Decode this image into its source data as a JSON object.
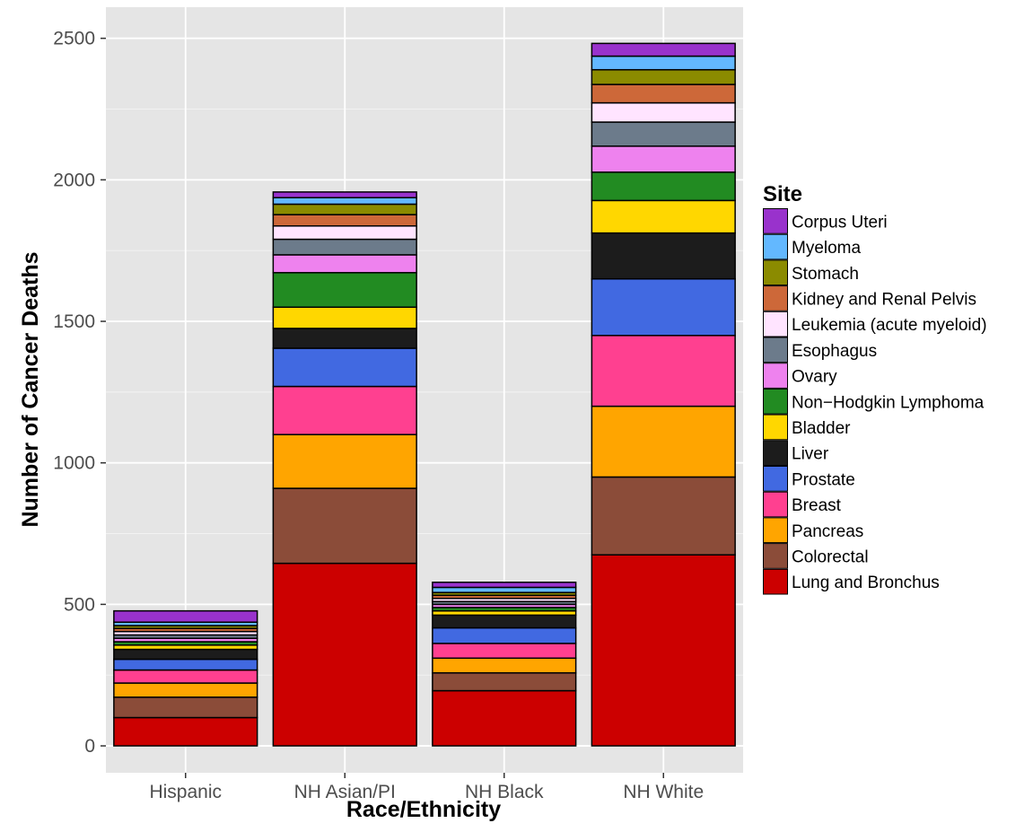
{
  "chart_data": {
    "type": "bar",
    "stacked": true,
    "xlabel": "Race/Ethnicity",
    "ylabel": "Number of Cancer Deaths",
    "ylim": [
      -95,
      2610
    ],
    "yticks": [
      0,
      500,
      1000,
      1500,
      2000,
      2500
    ],
    "grid": true,
    "legend_title": "Site",
    "legend_position": "right",
    "categories": [
      "Hispanic",
      "NH Asian/PI",
      "NH Black",
      "NH White"
    ],
    "series": [
      {
        "name": "Lung and Bronchus",
        "color": "#CC0000",
        "values": [
          100,
          645,
          195,
          675
        ]
      },
      {
        "name": "Colorectal",
        "color": "#8B4C39",
        "values": [
          72,
          265,
          63,
          275
        ]
      },
      {
        "name": "Pancreas",
        "color": "#FFA500",
        "values": [
          50,
          190,
          52,
          250
        ]
      },
      {
        "name": "Breast",
        "color": "#FF4090",
        "values": [
          46,
          170,
          52,
          250
        ]
      },
      {
        "name": "Prostate",
        "color": "#4169E1",
        "values": [
          38,
          135,
          55,
          200
        ]
      },
      {
        "name": "Liver",
        "color": "#1C1C1C",
        "values": [
          35,
          70,
          45,
          162
        ]
      },
      {
        "name": "Bladder",
        "color": "#FFD700",
        "values": [
          15,
          75,
          15,
          115
        ]
      },
      {
        "name": "Non-Hodgkin Lymphoma",
        "color": "#228B22",
        "values": [
          12,
          122,
          12,
          100
        ]
      },
      {
        "name": "Ovary",
        "color": "#EE82EE",
        "values": [
          12,
          63,
          11,
          92
        ]
      },
      {
        "name": "Esophagus",
        "color": "#6C7B8B",
        "values": [
          12,
          55,
          10,
          85
        ]
      },
      {
        "name": "Leukemia (acute myeloid)",
        "color": "#FFE4FF",
        "values": [
          12,
          47,
          11,
          68
        ]
      },
      {
        "name": "Kidney and Renal Pelvis",
        "color": "#CD6839",
        "values": [
          11,
          40,
          11,
          65
        ]
      },
      {
        "name": "Stomach",
        "color": "#8B8B00",
        "values": [
          10,
          37,
          10,
          52
        ]
      },
      {
        "name": "Myeloma",
        "color": "#63B8FF",
        "values": [
          12,
          23,
          18,
          48
        ]
      },
      {
        "name": "Corpus Uteri",
        "color": "#9932CC",
        "values": [
          40,
          20,
          18,
          45
        ]
      }
    ],
    "legend_order": [
      "Corpus Uteri",
      "Myeloma",
      "Stomach",
      "Kidney and Renal Pelvis",
      "Leukemia (acute myeloid)",
      "Esophagus",
      "Ovary",
      "Non−Hodgkin Lymphoma",
      "Bladder",
      "Liver",
      "Prostate",
      "Breast",
      "Pancreas",
      "Colorectal",
      "Lung and Bronchus"
    ],
    "panel_background": "#E5E5E5",
    "gridline_color": "#FFFFFF"
  }
}
